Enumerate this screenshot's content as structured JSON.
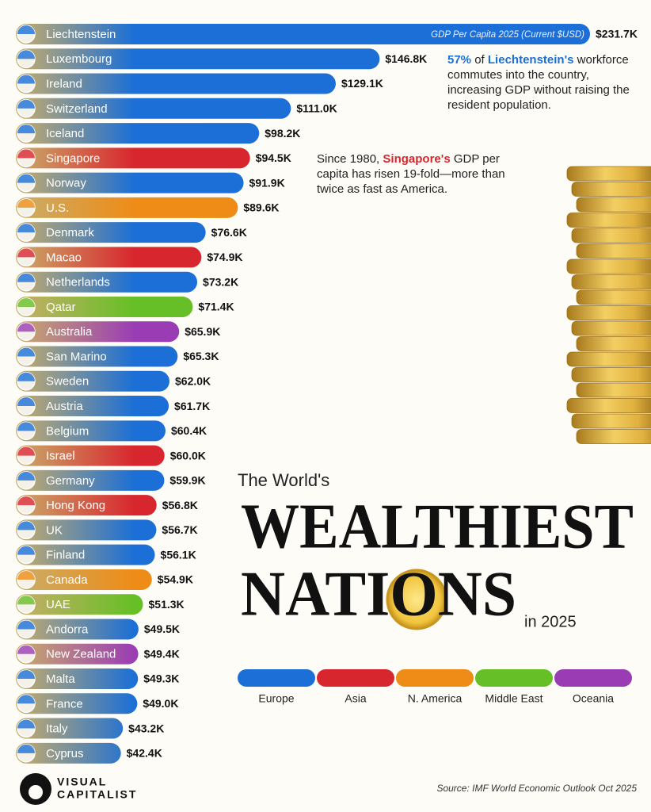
{
  "chart_data": {
    "type": "bar",
    "subtitle": "GDP Per Capita 2025 (Current $USD)",
    "categories": [
      "Liechtenstein",
      "Luxembourg",
      "Ireland",
      "Switzerland",
      "Iceland",
      "Singapore",
      "Norway",
      "U.S.",
      "Denmark",
      "Macao",
      "Netherlands",
      "Qatar",
      "Australia",
      "San Marino",
      "Sweden",
      "Austria",
      "Belgium",
      "Israel",
      "Germany",
      "Hong Kong",
      "UK",
      "Finland",
      "Canada",
      "UAE",
      "Andorra",
      "New Zealand",
      "Malta",
      "France",
      "Italy",
      "Cyprus"
    ],
    "values": [
      231.7,
      146.8,
      129.1,
      111.0,
      98.2,
      94.5,
      91.9,
      89.6,
      76.6,
      74.9,
      73.2,
      71.4,
      65.9,
      65.3,
      62.0,
      61.7,
      60.4,
      60.0,
      59.9,
      56.8,
      56.7,
      56.1,
      54.9,
      51.3,
      49.5,
      49.4,
      49.3,
      49.0,
      43.2,
      42.4
    ],
    "value_labels": [
      "$231.7K",
      "$146.8K",
      "$129.1K",
      "$111.0K",
      "$98.2K",
      "$94.5K",
      "$91.9K",
      "$89.6K",
      "$76.6K",
      "$74.9K",
      "$73.2K",
      "$71.4K",
      "$65.9K",
      "$65.3K",
      "$62.0K",
      "$61.7K",
      "$60.4K",
      "$60.0K",
      "$59.9K",
      "$56.8K",
      "$56.7K",
      "$56.1K",
      "$54.9K",
      "$51.3K",
      "$49.5K",
      "$49.4K",
      "$49.3K",
      "$49.0K",
      "$43.2K",
      "$42.4K"
    ],
    "colors": [
      "#1b6fd6",
      "#1b6fd6",
      "#1b6fd6",
      "#1b6fd6",
      "#1b6fd6",
      "#d8262e",
      "#1b6fd6",
      "#ee8c17",
      "#1b6fd6",
      "#d8262e",
      "#1b6fd6",
      "#66bf26",
      "#9a3db5",
      "#1b6fd6",
      "#1b6fd6",
      "#1b6fd6",
      "#1b6fd6",
      "#d8262e",
      "#1b6fd6",
      "#d8262e",
      "#1b6fd6",
      "#1b6fd6",
      "#ee8c17",
      "#66bf26",
      "#1b6fd6",
      "#9a3db5",
      "#1b6fd6",
      "#1b6fd6",
      "#1b6fd6",
      "#1b6fd6"
    ],
    "legend": [
      {
        "name": "Europe",
        "color": "#1b6fd6"
      },
      {
        "name": "Asia",
        "color": "#d8262e"
      },
      {
        "name": "N. America",
        "color": "#ee8c17"
      },
      {
        "name": "Middle East",
        "color": "#66bf26"
      },
      {
        "name": "Oceania",
        "color": "#9a3db5"
      }
    ],
    "annotations": [
      [
        "57%",
        " of ",
        "Liechtenstein's",
        " workforce commutes into the country, increasing GDP without raising the resident population."
      ],
      [
        "Since 1980, ",
        "Singapore's",
        " GDP per capita has risen 19-fold—more than twice as fast as America."
      ]
    ],
    "title": {
      "pre": "The World's",
      "line1": "WEALTHIEST",
      "line2": "NATIONS",
      "post": "in 2025"
    },
    "source": "Source: IMF World Economic Outlook Oct 2025"
  },
  "logo": [
    "VISUAL",
    "CAPITALIST"
  ]
}
